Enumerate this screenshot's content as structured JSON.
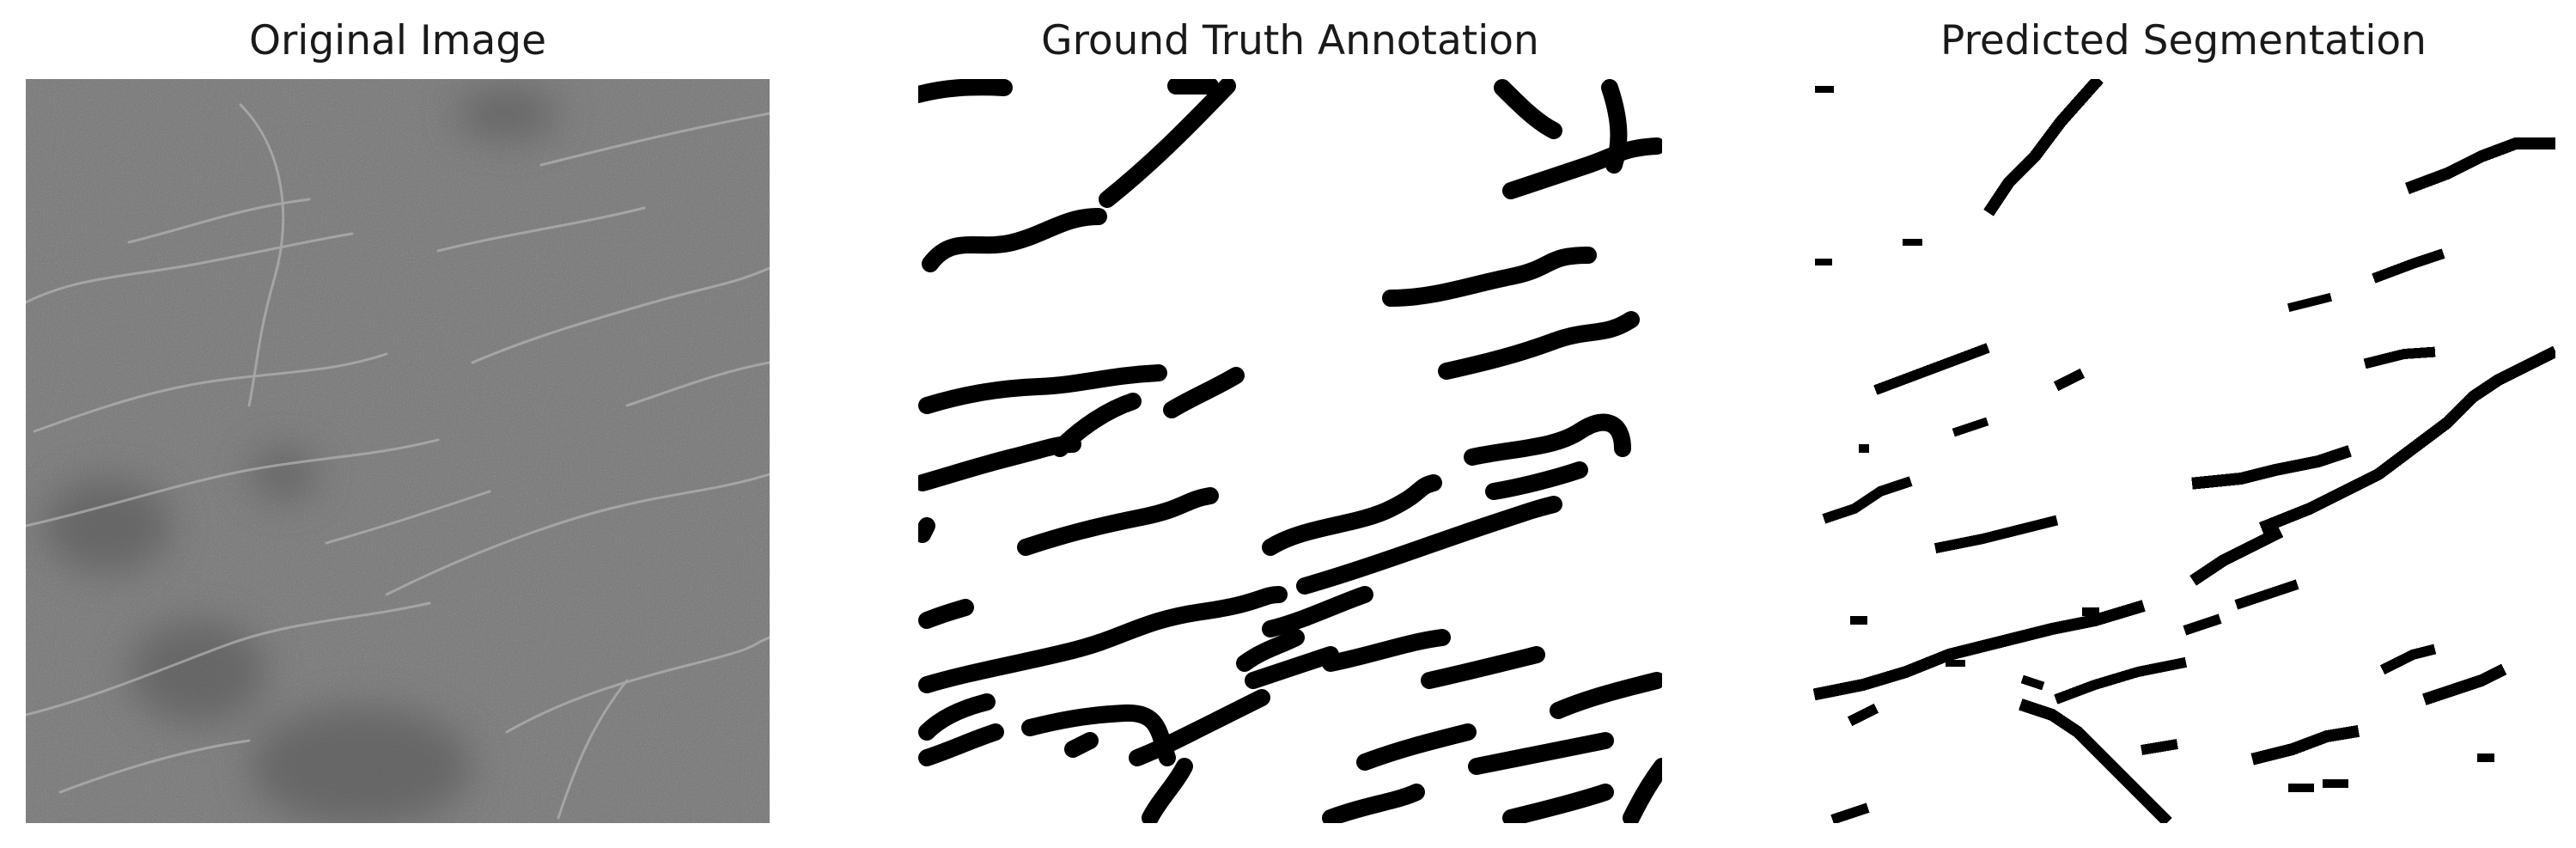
{
  "panels": [
    {
      "title": "Original Image"
    },
    {
      "title": "Ground Truth Annotation"
    },
    {
      "title": "Predicted Segmentation"
    }
  ],
  "colors": {
    "background": "#ffffff",
    "gray_image_base": "#7e7e7e",
    "gray_image_dark": "#5a5a5a",
    "crack_light": "#b9b9b9",
    "mask_black": "#000000",
    "mask_white": "#ffffff"
  }
}
